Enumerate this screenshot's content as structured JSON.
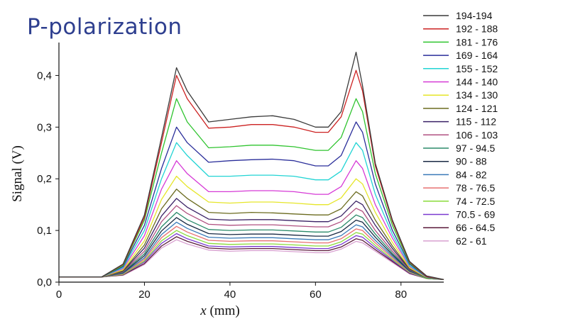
{
  "title": "P-polarization",
  "chart_data": {
    "type": "line",
    "title": "P-polarization",
    "xlabel": "x (mm)",
    "ylabel": "Signal (V)",
    "xlim": [
      0,
      90
    ],
    "ylim": [
      0,
      0.45
    ],
    "xticks": [
      "0",
      "20",
      "40",
      "60",
      "80"
    ],
    "xtick_values": [
      0,
      20,
      40,
      60,
      80
    ],
    "yticks": [
      "0,0",
      "0,1",
      "0,2",
      "0,3",
      "0,4"
    ],
    "ytick_values": [
      0,
      0.1,
      0.2,
      0.3,
      0.4
    ],
    "grid": false,
    "legend_position": "right",
    "x": [
      0,
      10,
      15,
      20,
      24,
      27.5,
      30,
      35,
      40,
      45,
      50,
      55,
      60,
      63,
      66,
      69.5,
      71,
      74,
      78,
      82,
      86,
      90
    ],
    "series": [
      {
        "name": "194-194",
        "color": "#3a3a3a",
        "values": [
          0.01,
          0.01,
          0.035,
          0.13,
          0.28,
          0.415,
          0.37,
          0.31,
          0.315,
          0.32,
          0.322,
          0.315,
          0.3,
          0.3,
          0.33,
          0.445,
          0.38,
          0.23,
          0.12,
          0.04,
          0.012,
          0.005
        ]
      },
      {
        "name": "192 - 188",
        "color": "#cc2222",
        "values": [
          0.01,
          0.01,
          0.034,
          0.125,
          0.27,
          0.4,
          0.355,
          0.298,
          0.3,
          0.305,
          0.305,
          0.3,
          0.29,
          0.29,
          0.32,
          0.41,
          0.37,
          0.225,
          0.117,
          0.039,
          0.011,
          0.005
        ]
      },
      {
        "name": "181 - 176",
        "color": "#2fc42f",
        "values": [
          0.01,
          0.01,
          0.032,
          0.12,
          0.25,
          0.355,
          0.31,
          0.26,
          0.262,
          0.265,
          0.265,
          0.262,
          0.255,
          0.255,
          0.28,
          0.355,
          0.33,
          0.21,
          0.11,
          0.037,
          0.011,
          0.005
        ]
      },
      {
        "name": "169 - 164",
        "color": "#2a2e9a",
        "values": [
          0.01,
          0.01,
          0.03,
          0.11,
          0.22,
          0.3,
          0.27,
          0.232,
          0.235,
          0.237,
          0.238,
          0.235,
          0.225,
          0.225,
          0.245,
          0.31,
          0.29,
          0.19,
          0.1,
          0.035,
          0.01,
          0.005
        ]
      },
      {
        "name": "155 - 152",
        "color": "#22d4d4",
        "values": [
          0.01,
          0.01,
          0.028,
          0.1,
          0.2,
          0.27,
          0.245,
          0.205,
          0.205,
          0.207,
          0.207,
          0.205,
          0.198,
          0.198,
          0.215,
          0.27,
          0.255,
          0.17,
          0.092,
          0.032,
          0.01,
          0.005
        ]
      },
      {
        "name": "144 - 140",
        "color": "#d63ad6",
        "values": [
          0.01,
          0.01,
          0.026,
          0.09,
          0.18,
          0.235,
          0.21,
          0.175,
          0.175,
          0.177,
          0.177,
          0.175,
          0.17,
          0.17,
          0.185,
          0.235,
          0.22,
          0.15,
          0.085,
          0.03,
          0.01,
          0.005
        ]
      },
      {
        "name": "134 - 130",
        "color": "#e6e62a",
        "values": [
          0.01,
          0.01,
          0.024,
          0.08,
          0.16,
          0.205,
          0.185,
          0.155,
          0.153,
          0.155,
          0.155,
          0.153,
          0.15,
          0.15,
          0.163,
          0.2,
          0.19,
          0.135,
          0.077,
          0.028,
          0.009,
          0.005
        ]
      },
      {
        "name": "124 - 121",
        "color": "#6b6b1f",
        "values": [
          0.01,
          0.01,
          0.022,
          0.072,
          0.142,
          0.18,
          0.162,
          0.135,
          0.133,
          0.135,
          0.134,
          0.132,
          0.13,
          0.13,
          0.142,
          0.175,
          0.167,
          0.12,
          0.07,
          0.026,
          0.009,
          0.005
        ]
      },
      {
        "name": "115 - 112",
        "color": "#3a2266",
        "values": [
          0.01,
          0.01,
          0.021,
          0.066,
          0.128,
          0.162,
          0.145,
          0.122,
          0.12,
          0.121,
          0.121,
          0.119,
          0.117,
          0.117,
          0.128,
          0.157,
          0.15,
          0.11,
          0.065,
          0.025,
          0.009,
          0.005
        ]
      },
      {
        "name": "106 - 103",
        "color": "#b05080",
        "values": [
          0.01,
          0.01,
          0.02,
          0.06,
          0.117,
          0.148,
          0.133,
          0.112,
          0.11,
          0.111,
          0.111,
          0.109,
          0.107,
          0.107,
          0.117,
          0.143,
          0.137,
          0.1,
          0.06,
          0.024,
          0.009,
          0.005
        ]
      },
      {
        "name": "97 - 94.5",
        "color": "#2b8a6a",
        "values": [
          0.01,
          0.01,
          0.019,
          0.055,
          0.107,
          0.135,
          0.121,
          0.102,
          0.1,
          0.101,
          0.101,
          0.099,
          0.097,
          0.097,
          0.106,
          0.13,
          0.125,
          0.093,
          0.056,
          0.023,
          0.008,
          0.005
        ]
      },
      {
        "name": "90 - 88",
        "color": "#1a2a44",
        "values": [
          0.01,
          0.01,
          0.018,
          0.051,
          0.099,
          0.125,
          0.112,
          0.094,
          0.092,
          0.093,
          0.093,
          0.091,
          0.089,
          0.089,
          0.098,
          0.12,
          0.116,
          0.087,
          0.053,
          0.022,
          0.008,
          0.005
        ]
      },
      {
        "name": "84 - 82",
        "color": "#3a7ab8",
        "values": [
          0.01,
          0.01,
          0.017,
          0.047,
          0.092,
          0.116,
          0.104,
          0.087,
          0.085,
          0.086,
          0.086,
          0.084,
          0.082,
          0.082,
          0.09,
          0.111,
          0.107,
          0.081,
          0.05,
          0.021,
          0.008,
          0.005
        ]
      },
      {
        "name": "78 - 76.5",
        "color": "#e87070",
        "values": [
          0.01,
          0.01,
          0.016,
          0.044,
          0.086,
          0.108,
          0.097,
          0.081,
          0.079,
          0.08,
          0.08,
          0.078,
          0.076,
          0.076,
          0.084,
          0.103,
          0.1,
          0.076,
          0.047,
          0.02,
          0.008,
          0.005
        ]
      },
      {
        "name": "74 - 72.5",
        "color": "#8adb3a",
        "values": [
          0.01,
          0.01,
          0.015,
          0.041,
          0.08,
          0.1,
          0.09,
          0.075,
          0.073,
          0.074,
          0.074,
          0.072,
          0.07,
          0.07,
          0.078,
          0.096,
          0.093,
          0.071,
          0.044,
          0.019,
          0.007,
          0.005
        ]
      },
      {
        "name": "70.5 - 69",
        "color": "#7a3ad0",
        "values": [
          0.01,
          0.01,
          0.015,
          0.039,
          0.075,
          0.094,
          0.084,
          0.07,
          0.068,
          0.069,
          0.069,
          0.067,
          0.065,
          0.065,
          0.073,
          0.09,
          0.087,
          0.067,
          0.042,
          0.018,
          0.007,
          0.005
        ]
      },
      {
        "name": "66 - 64.5",
        "color": "#5a1a3a",
        "values": [
          0.01,
          0.01,
          0.014,
          0.036,
          0.07,
          0.088,
          0.079,
          0.066,
          0.064,
          0.065,
          0.065,
          0.063,
          0.061,
          0.061,
          0.068,
          0.084,
          0.081,
          0.063,
          0.04,
          0.017,
          0.007,
          0.005
        ]
      },
      {
        "name": "62 - 61",
        "color": "#d8a0d0",
        "values": [
          0.01,
          0.01,
          0.013,
          0.034,
          0.066,
          0.082,
          0.074,
          0.062,
          0.06,
          0.061,
          0.061,
          0.059,
          0.057,
          0.057,
          0.064,
          0.079,
          0.076,
          0.06,
          0.038,
          0.016,
          0.007,
          0.005
        ]
      }
    ]
  }
}
